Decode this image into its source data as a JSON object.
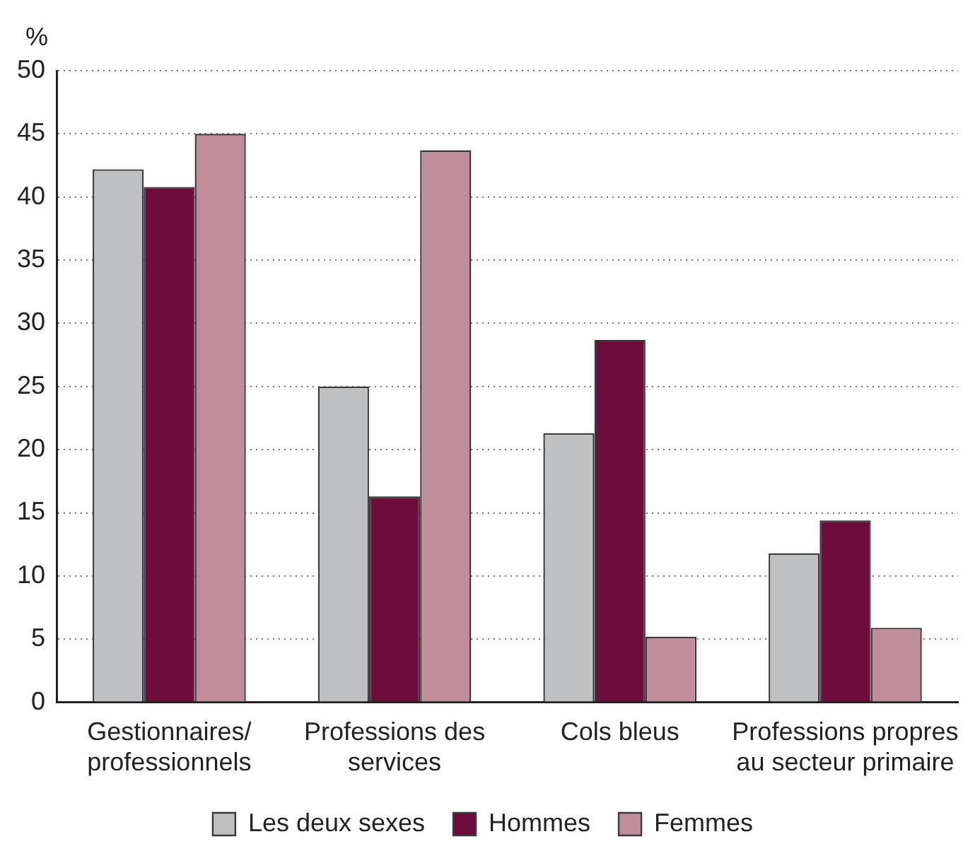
{
  "chart_data": {
    "type": "bar",
    "ylabel": "%",
    "categories": [
      "Gestionnaires/ professionnels",
      "Professions des services",
      "Cols bleus",
      "Professions propres au secteur primaire"
    ],
    "series": [
      {
        "name": "Les deux sexes",
        "color": "#bfc0c2",
        "values": [
          42.2,
          25.0,
          21.3,
          11.8
        ]
      },
      {
        "name": "Hommes",
        "color": "#6e0d3b",
        "values": [
          40.8,
          16.3,
          28.7,
          14.4
        ]
      },
      {
        "name": "Femmes",
        "color": "#c08e9b",
        "values": [
          45.0,
          43.7,
          5.2,
          5.9
        ]
      }
    ],
    "ylim": [
      0,
      50
    ],
    "yticks": [
      0,
      5,
      10,
      15,
      20,
      25,
      30,
      35,
      40,
      45,
      50
    ],
    "grid": "y",
    "legend": "bottom"
  }
}
